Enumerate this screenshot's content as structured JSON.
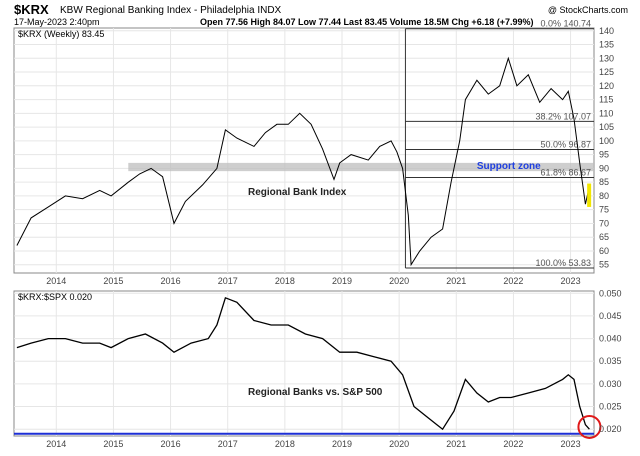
{
  "header": {
    "symbol": "$KRX",
    "name": "KBW Regional Banking Index - Philadelphia INDX",
    "date": "17-May-2023 2:40pm",
    "quote": "Open 77.56  High 84.07  Low 77.44  Last 83.45  Volume 18.5M  Chg +6.18 (+7.99%)",
    "copyright": "@ StockCharts.com"
  },
  "chart_data": [
    {
      "type": "line",
      "legend": "$KRX (Weekly) 83.45",
      "annotation": "Regional Bank Index",
      "support_label": "Support zone",
      "x_ticks": [
        "2014",
        "2015",
        "2016",
        "2017",
        "2018",
        "2019",
        "2020",
        "2021",
        "2022",
        "2023"
      ],
      "y_ticks": [
        55,
        60,
        65,
        70,
        75,
        80,
        85,
        90,
        95,
        100,
        105,
        110,
        115,
        120,
        125,
        130,
        135,
        140
      ],
      "ylim": [
        52,
        141
      ],
      "support_zone": [
        89,
        92
      ],
      "fib_levels": [
        {
          "label": "0.0% 140.74",
          "value": 140.74
        },
        {
          "label": "38.2% 107.07",
          "value": 107.07
        },
        {
          "label": "50.0% 96.87",
          "value": 96.87
        },
        {
          "label": "61.8% 86.67",
          "value": 86.67
        },
        {
          "label": "100.0% 53.83",
          "value": 53.83
        }
      ],
      "x": [
        2013.35,
        2013.6,
        2013.9,
        2014.2,
        2014.5,
        2014.8,
        2015.0,
        2015.3,
        2015.5,
        2015.7,
        2015.9,
        2016.1,
        2016.3,
        2016.6,
        2016.85,
        2017.0,
        2017.2,
        2017.5,
        2017.7,
        2017.9,
        2018.1,
        2018.3,
        2018.5,
        2018.7,
        2018.9,
        2019.0,
        2019.2,
        2019.5,
        2019.7,
        2019.9,
        2020.0,
        2020.1,
        2020.2,
        2020.25,
        2020.4,
        2020.6,
        2020.8,
        2020.95,
        2021.1,
        2021.2,
        2021.4,
        2021.6,
        2021.8,
        2021.95,
        2022.1,
        2022.3,
        2022.5,
        2022.7,
        2022.9,
        2023.0,
        2023.1,
        2023.2,
        2023.3,
        2023.37
      ],
      "values": [
        62,
        72,
        76,
        80,
        79,
        82,
        80,
        85,
        88,
        90,
        87,
        70,
        78,
        84,
        90,
        104,
        101,
        98,
        103,
        106,
        106,
        110,
        106,
        97,
        86,
        92,
        95,
        93,
        98,
        100,
        96,
        90,
        73,
        55,
        60,
        65,
        68,
        85,
        100,
        115,
        122,
        117,
        120,
        130,
        120,
        124,
        114,
        119,
        115,
        118,
        108,
        92,
        77,
        83.45
      ]
    },
    {
      "type": "line",
      "legend": "$KRX:$SPX 0.020",
      "annotation": "Regional Banks vs. S&P 500",
      "x_ticks": [
        "2014",
        "2015",
        "2016",
        "2017",
        "2018",
        "2019",
        "2020",
        "2021",
        "2022",
        "2023"
      ],
      "y_ticks": [
        0.02,
        0.025,
        0.03,
        0.035,
        0.04,
        0.045,
        0.05
      ],
      "ylim": [
        0.0185,
        0.0505
      ],
      "x": [
        2013.35,
        2013.6,
        2013.9,
        2014.2,
        2014.5,
        2014.8,
        2015.0,
        2015.3,
        2015.6,
        2015.9,
        2016.1,
        2016.4,
        2016.7,
        2016.85,
        2017.0,
        2017.2,
        2017.5,
        2017.8,
        2018.1,
        2018.4,
        2018.7,
        2019.0,
        2019.3,
        2019.6,
        2019.9,
        2020.1,
        2020.3,
        2020.5,
        2020.7,
        2020.8,
        2021.0,
        2021.2,
        2021.4,
        2021.6,
        2021.8,
        2022.0,
        2022.3,
        2022.6,
        2022.9,
        2023.0,
        2023.1,
        2023.2,
        2023.3,
        2023.37
      ],
      "values": [
        0.038,
        0.039,
        0.04,
        0.04,
        0.039,
        0.039,
        0.038,
        0.04,
        0.041,
        0.039,
        0.037,
        0.039,
        0.04,
        0.043,
        0.049,
        0.048,
        0.044,
        0.043,
        0.043,
        0.041,
        0.04,
        0.037,
        0.037,
        0.036,
        0.035,
        0.032,
        0.025,
        0.023,
        0.021,
        0.02,
        0.024,
        0.031,
        0.028,
        0.026,
        0.027,
        0.027,
        0.028,
        0.029,
        0.031,
        0.032,
        0.031,
        0.025,
        0.021,
        0.02
      ]
    }
  ],
  "colors": {
    "line": "#000000",
    "support": "#bdbdbd",
    "support_text": "#1f3fe0",
    "blue_line": "#1d2fd6",
    "circle": "#e01919",
    "highlight": "#f2e600",
    "grid": "#e3e3e3"
  }
}
